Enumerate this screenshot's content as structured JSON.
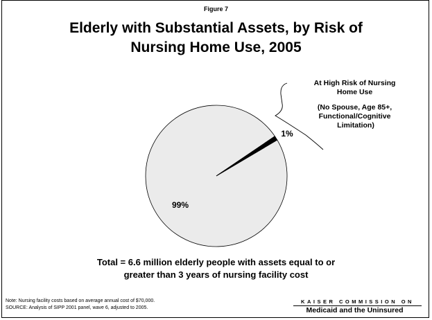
{
  "figure_label": "Figure 7",
  "title_lines": [
    "Elderly with Substantial Assets, by Risk of",
    "Nursing Home Use, 2005"
  ],
  "total_lines": [
    "Total = 6.6 million elderly people with assets equal to or",
    "greater than 3 years of nursing facility cost"
  ],
  "note_lines": [
    "Note: Nursing facility costs based on average annual cost of $70,000.",
    "SOURCE: Analysis of SIPP 2001 panel, wave 6, adjusted to 2005."
  ],
  "logo": {
    "top": "KAISER COMMISSION ON",
    "bottom": "Medicaid and the Uninsured"
  },
  "chart_data": {
    "type": "pie",
    "slices": [
      {
        "label": "99%",
        "value": 99,
        "color": "#ebebeb"
      },
      {
        "label": "1%",
        "value": 1,
        "color": "#000000"
      }
    ],
    "annotation_lines": [
      "At High Risk of Nursing",
      "Home Use",
      "(No Spouse, Age 85+,",
      "Functional/Cognitive",
      "Limitation)"
    ]
  }
}
